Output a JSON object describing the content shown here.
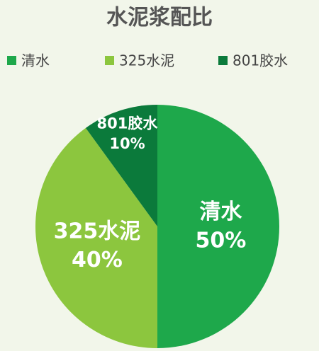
{
  "chart_data": {
    "type": "pie",
    "title": "水泥浆配比",
    "categories": [
      "清水",
      "325水泥",
      "801胶水"
    ],
    "values": [
      50,
      40,
      10
    ],
    "value_labels": [
      "50%",
      "40%",
      "10%"
    ],
    "colors": [
      "#1ea84b",
      "#8cc63e",
      "#0b7a3b"
    ],
    "legend": "top"
  }
}
